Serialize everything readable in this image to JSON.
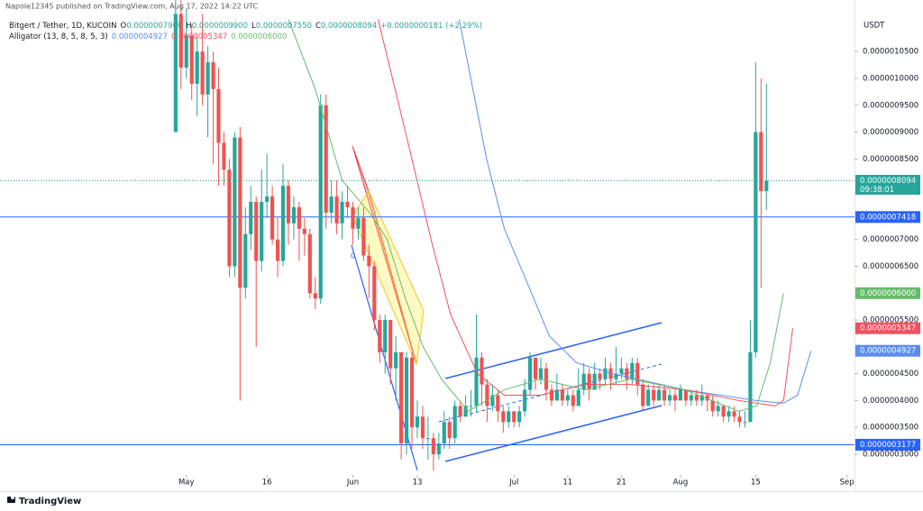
{
  "chart_data": {
    "type": "candlestick",
    "published": "Napole12345 published on TradingView.com, Aug 17, 2022 14:22 UTC",
    "symbol": "Bitgert / Tether, 1D, KUCOIN",
    "ohlc_legend": [
      {
        "key": "O",
        "value": "0.0000007900"
      },
      {
        "key": "H",
        "value": "0.0000009900"
      },
      {
        "key": "L",
        "value": "0.0000007550"
      },
      {
        "key": "C",
        "value": "0.0000008094"
      }
    ],
    "change": "+0.0000000181 (+2.29%)",
    "indicator": "Alligator (13, 8, 5, 8, 5, 3)",
    "y_axis_label": "USDT",
    "brand": "TradingView",
    "drawing_label": "0",
    "up_color": "#26a69a",
    "down_color": "#ef5350",
    "grid": false,
    "x": [
      0,
      1,
      2,
      3,
      4,
      5,
      6,
      7,
      8,
      9,
      10,
      11,
      12,
      13,
      14,
      15,
      16,
      17,
      18,
      19,
      20,
      21,
      22,
      23,
      24,
      25,
      26,
      27,
      28,
      29,
      30,
      31,
      32,
      33,
      34,
      35,
      36,
      37,
      38,
      39,
      40,
      41,
      42,
      43,
      44,
      45,
      46,
      47,
      48,
      49,
      50,
      51,
      52,
      53,
      54,
      55,
      56,
      57,
      58,
      59,
      60,
      61,
      62,
      63,
      64,
      65,
      66,
      67,
      68,
      69,
      70,
      71,
      72,
      73,
      74,
      75,
      76,
      77,
      78,
      79,
      80,
      81,
      82,
      83,
      84,
      85,
      86,
      87,
      88,
      89,
      90,
      91,
      92,
      93,
      94,
      95,
      96,
      97,
      98,
      99,
      100,
      101,
      102,
      103,
      104,
      105,
      106,
      107,
      108,
      109,
      110
    ],
    "open": [
      9e-07,
      1.12e-06,
      1.02e-06,
      1.08e-06,
      9.9e-07,
      1.05e-06,
      9.7e-07,
      1.03e-06,
      9.8e-07,
      8.8e-07,
      8.3e-07,
      6.5e-07,
      8.9e-07,
      6.1e-07,
      7.1e-07,
      7.7e-07,
      6.6e-07,
      7.7e-07,
      7.8e-07,
      7e-07,
      6.6e-07,
      8e-07,
      7.3e-07,
      7.6e-07,
      7.2e-07,
      7.1e-07,
      6e-07,
      5.9e-07,
      9.5e-07,
      7.5e-07,
      7.8e-07,
      7.3e-07,
      7.7e-07,
      7.6e-07,
      7.2e-07,
      7.4e-07,
      6.7e-07,
      6.5e-07,
      5.5e-07,
      4.9e-07,
      5.5e-07,
      4.6e-07,
      4.9e-07,
      3.2e-07,
      4.8e-07,
      3.5e-07,
      3.7e-07,
      3.3e-07,
      3.3e-07,
      3e-07,
      3.2e-07,
      3.6e-07,
      3.3e-07,
      3.9e-07,
      3.7e-07,
      3.9e-07,
      3.9e-07,
      4.8e-07,
      4.3e-07,
      3.9e-07,
      4.1e-07,
      3.8e-07,
      3.6e-07,
      3.8e-07,
      3.6e-07,
      3.8e-07,
      4.2e-07,
      4.8e-07,
      4.4e-07,
      4.6e-07,
      4.2e-07,
      4e-07,
      4.2e-07,
      4e-07,
      4.1e-07,
      3.9e-07,
      4.2e-07,
      4.5e-07,
      4.2e-07,
      4.5e-07,
      4.4e-07,
      4.6e-07,
      4.4e-07,
      4.5e-07,
      4.6e-07,
      4.4e-07,
      4.7e-07,
      4.3e-07,
      3.9e-07,
      4.2e-07,
      4e-07,
      4.2e-07,
      4e-07,
      4.1e-07,
      4e-07,
      4.2e-07,
      4e-07,
      4.1e-07,
      4e-07,
      4.1e-07,
      4e-07,
      3.8e-07,
      3.9e-07,
      3.7e-07,
      3.8e-07,
      3.7e-07,
      3.6e-07,
      3.6e-07,
      4.9e-07,
      9e-07,
      7.9e-07
    ],
    "high": [
      1.15e-06,
      1.15e-06,
      1.13e-06,
      1.1e-06,
      1.08e-06,
      1.12e-06,
      1.06e-06,
      1.05e-06,
      1.02e-06,
      9e-07,
      8.5e-07,
      9e-07,
      9.1e-07,
      7.6e-07,
      8e-07,
      7.8e-07,
      8.3e-07,
      8.6e-07,
      8e-07,
      7.4e-07,
      8.4e-07,
      8.1e-07,
      7.8e-07,
      7.7e-07,
      7.4e-07,
      7.2e-07,
      6.3e-07,
      9.7e-07,
      9.7e-07,
      8.1e-07,
      8.1e-07,
      7.9e-07,
      8e-07,
      7.7e-07,
      7.6e-07,
      7.6e-07,
      6.9e-07,
      6.6e-07,
      5.6e-07,
      5.6e-07,
      5.5e-07,
      5.2e-07,
      4.9e-07,
      4.9e-07,
      4.9e-07,
      4e-07,
      3.9e-07,
      3.7e-07,
      3.4e-07,
      3.4e-07,
      3.8e-07,
      3.7e-07,
      4e-07,
      4e-07,
      4.1e-07,
      4.2e-07,
      5.6e-07,
      4.9e-07,
      4.4e-07,
      4.3e-07,
      4.2e-07,
      3.9e-07,
      3.9e-07,
      3.8e-07,
      3.9e-07,
      4.4e-07,
      4.9e-07,
      4.8e-07,
      4.8e-07,
      4.7e-07,
      4.3e-07,
      4.5e-07,
      4.3e-07,
      4.2e-07,
      4.2e-07,
      4.6e-07,
      4.7e-07,
      4.6e-07,
      4.7e-07,
      4.6e-07,
      4.8e-07,
      4.7e-07,
      5e-07,
      4.8e-07,
      4.7e-07,
      4.8e-07,
      4.8e-07,
      4.4e-07,
      4.3e-07,
      4.3e-07,
      4.3e-07,
      4.3e-07,
      4.2e-07,
      4.2e-07,
      4.3e-07,
      4.2e-07,
      4.2e-07,
      4.2e-07,
      4.3e-07,
      4.1e-07,
      4.1e-07,
      4e-07,
      3.9e-07,
      3.9e-07,
      3.9e-07,
      3.8e-07,
      3.8e-07,
      5.5e-07,
      1.03e-06,
      1e-06,
      9.9e-07
    ],
    "low": [
      9e-07,
      9.8e-07,
      1e-06,
      9.6e-07,
      9.3e-07,
      9.5e-07,
      8.9e-07,
      8.4e-07,
      8e-07,
      8e-07,
      6.3e-07,
      6.3e-07,
      4e-07,
      5.9e-07,
      6.8e-07,
      5e-07,
      6.4e-07,
      7.4e-07,
      6.9e-07,
      6.3e-07,
      6.5e-07,
      6.9e-07,
      7e-07,
      6.6e-07,
      6.7e-07,
      5.9e-07,
      5.7e-07,
      5.8e-07,
      7.2e-07,
      7.3e-07,
      7.1e-07,
      7e-07,
      7.4e-07,
      6.9e-07,
      7e-07,
      6.6e-07,
      5.9e-07,
      5.3e-07,
      4.7e-07,
      4.5e-07,
      4.3e-07,
      4e-07,
      2.9e-07,
      3e-07,
      3.1e-07,
      3.3e-07,
      3.1e-07,
      2.9e-07,
      2.7e-07,
      2.9e-07,
      3.1e-07,
      3.1e-07,
      3.2e-07,
      3.6e-07,
      3.7e-07,
      3.7e-07,
      3.8e-07,
      3.9e-07,
      3.6e-07,
      3.8e-07,
      3.6e-07,
      3.4e-07,
      3.5e-07,
      3.5e-07,
      3.5e-07,
      3.7e-07,
      4.1e-07,
      4.2e-07,
      4.3e-07,
      4e-07,
      3.9e-07,
      4e-07,
      3.9e-07,
      3.9e-07,
      3.8e-07,
      3.9e-07,
      4.1e-07,
      4e-07,
      4.2e-07,
      4.2e-07,
      4.3e-07,
      4.2e-07,
      4.3e-07,
      4.4e-07,
      4.2e-07,
      4.3e-07,
      4.1e-07,
      3.8e-07,
      3.9e-07,
      3.9e-07,
      4e-07,
      3.9e-07,
      3.9e-07,
      3.8e-07,
      4e-07,
      3.9e-07,
      3.9e-07,
      3.9e-07,
      3.9e-07,
      3.8e-07,
      3.7e-07,
      3.7e-07,
      3.6e-07,
      3.6e-07,
      3.6e-07,
      3.5e-07,
      3.5e-07,
      3.6e-07,
      4.8e-07,
      6.1e-07,
      7.55e-07
    ],
    "close": [
      1.12e-06,
      1.02e-06,
      1.08e-06,
      9.9e-07,
      1.05e-06,
      9.7e-07,
      1.03e-06,
      9.8e-07,
      8.8e-07,
      8.3e-07,
      6.5e-07,
      8.9e-07,
      6.1e-07,
      7.1e-07,
      7.7e-07,
      6.6e-07,
      7.7e-07,
      7.8e-07,
      7e-07,
      6.6e-07,
      8e-07,
      7.3e-07,
      7.6e-07,
      7.2e-07,
      7.1e-07,
      6e-07,
      5.9e-07,
      9.5e-07,
      7.5e-07,
      7.8e-07,
      7.3e-07,
      7.7e-07,
      7.6e-07,
      7.2e-07,
      7.4e-07,
      6.7e-07,
      6.5e-07,
      5.5e-07,
      4.9e-07,
      5.5e-07,
      4.6e-07,
      4.9e-07,
      3.2e-07,
      4.8e-07,
      3.5e-07,
      3.7e-07,
      3.3e-07,
      3.3e-07,
      3e-07,
      3.2e-07,
      3.6e-07,
      3.3e-07,
      3.9e-07,
      3.7e-07,
      3.9e-07,
      3.9e-07,
      4.8e-07,
      4.3e-07,
      3.9e-07,
      4.1e-07,
      3.8e-07,
      3.6e-07,
      3.8e-07,
      3.6e-07,
      3.8e-07,
      4.2e-07,
      4.8e-07,
      4.4e-07,
      4.6e-07,
      4.2e-07,
      4e-07,
      4.2e-07,
      4e-07,
      4.1e-07,
      3.9e-07,
      4.2e-07,
      4.5e-07,
      4.2e-07,
      4.5e-07,
      4.4e-07,
      4.6e-07,
      4.4e-07,
      4.5e-07,
      4.6e-07,
      4.4e-07,
      4.7e-07,
      4.3e-07,
      3.9e-07,
      4.2e-07,
      4e-07,
      4.2e-07,
      4e-07,
      4.1e-07,
      4e-07,
      4.2e-07,
      4e-07,
      4.1e-07,
      4e-07,
      4.1e-07,
      4e-07,
      3.8e-07,
      3.9e-07,
      3.7e-07,
      3.8e-07,
      3.7e-07,
      3.6e-07,
      3.6e-07,
      4.9e-07,
      9e-07,
      7.9e-07,
      8.094e-07
    ],
    "last_price_label": "0.0000008094",
    "countdown": "09:38:01",
    "lines": [
      {
        "color": "#5b8def",
        "label": "0.0000004927",
        "x": [
          52.8,
          57.9,
          61.2,
          64.6,
          69.6,
          74.7,
          81.4,
          88.1,
          94.8,
          101.5,
          108.2,
          113.2,
          115.8,
          118.3
        ],
        "values": [
          1.11e-06,
          8.5e-07,
          7.2e-07,
          6.4e-07,
          5.2e-07,
          4.7e-07,
          4.5e-07,
          4.35e-07,
          4.2e-07,
          4.1e-07,
          4e-07,
          3.95e-07,
          4.1e-07,
          4.927e-07
        ]
      },
      {
        "color": "#f0505f",
        "label": "0.0000005347",
        "x": [
          37.7,
          42.8,
          47.8,
          51.2,
          56.2,
          61.2,
          67.9,
          76.3,
          84.7,
          94.8,
          104.9,
          111.6,
          113.2,
          114.9
        ],
        "values": [
          1.11e-06,
          9e-07,
          6.9e-07,
          5.6e-07,
          4.5e-07,
          4.1e-07,
          4.1e-07,
          4.3e-07,
          4.3e-07,
          4.2e-07,
          4e-07,
          3.9e-07,
          4e-07,
          5.347e-07
        ]
      },
      {
        "color": "#66bb6a",
        "label": "0.0000006000",
        "x": [
          21.0,
          26.0,
          31.0,
          36.1,
          39.4,
          42.8,
          46.1,
          49.5,
          54.5,
          61.2,
          67.9,
          76.3,
          84.7,
          94.8,
          104.9,
          108.2,
          110.7,
          113.2
        ],
        "values": [
          1.11e-06,
          9.8e-07,
          8.1e-07,
          7.5e-07,
          7e-07,
          5.9e-07,
          5e-07,
          4.4e-07,
          3.8e-07,
          4.2e-07,
          4.4e-07,
          4.2e-07,
          4.4e-07,
          4.2e-07,
          3.8e-07,
          3.9e-07,
          4.7e-07,
          6e-07
        ]
      }
    ],
    "hlines": [
      {
        "value": 7.418e-07,
        "label": "0.0000007418"
      },
      {
        "value": 3.177e-07,
        "label": "0.0000003177"
      }
    ],
    "hline_color": "#2962ff",
    "xlim": [
      -32.7,
      126.4
    ],
    "xticks": [
      {
        "value": 2,
        "label": "May"
      },
      {
        "value": 17,
        "label": "16"
      },
      {
        "value": 33,
        "label": "Jun"
      },
      {
        "value": 45,
        "label": "13"
      },
      {
        "value": 63,
        "label": "Jul"
      },
      {
        "value": 73,
        "label": "11"
      },
      {
        "value": 83,
        "label": "21"
      },
      {
        "value": 94,
        "label": "Aug"
      },
      {
        "value": 108,
        "label": "15"
      },
      {
        "value": 125,
        "label": "Sep"
      }
    ],
    "ylim": [
      2.48e-07,
      1.146e-06
    ],
    "yticks": [
      {
        "value": 1.05e-06,
        "label": "0.0000010500"
      },
      {
        "value": 1e-06,
        "label": "0.0000010000"
      },
      {
        "value": 9.5e-07,
        "label": "0.0000009500"
      },
      {
        "value": 9e-07,
        "label": "0.0000009000"
      },
      {
        "value": 8.5e-07,
        "label": "0.0000008500"
      },
      {
        "value": 7e-07,
        "label": "0.0000007000"
      },
      {
        "value": 6.5e-07,
        "label": "0.0000006500"
      },
      {
        "value": 5.5e-07,
        "label": "0.0000005500"
      },
      {
        "value": 4.5e-07,
        "label": "0.0000004500"
      },
      {
        "value": 4e-07,
        "label": "0.0000004000"
      },
      {
        "value": 3.5e-07,
        "label": "0.0000003500"
      },
      {
        "value": 3e-07,
        "label": "0.0000003000"
      }
    ]
  }
}
